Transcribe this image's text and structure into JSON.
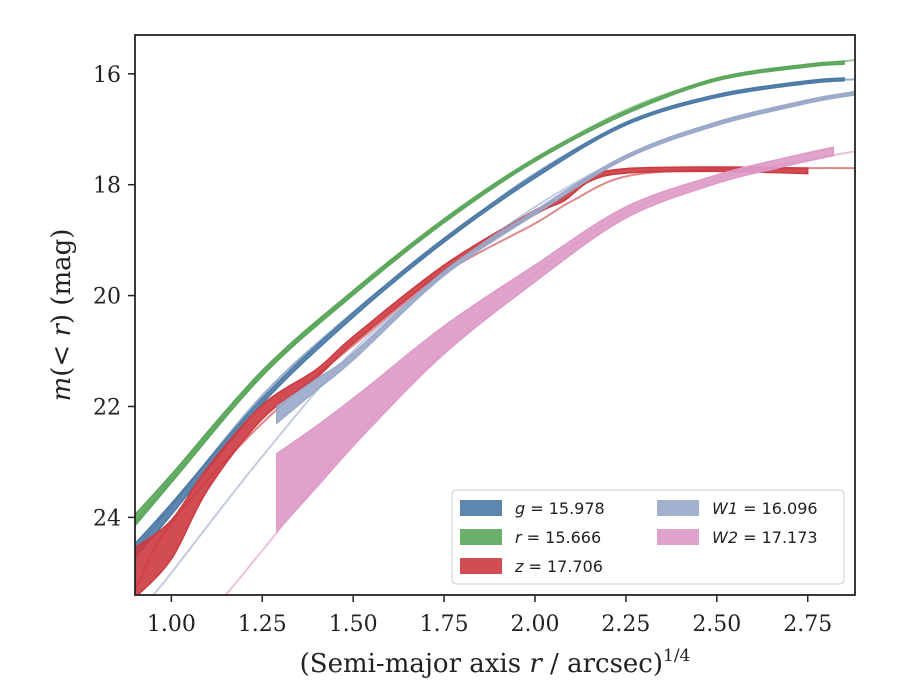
{
  "chart_data": {
    "type": "line",
    "title": "",
    "xlabel": "(Semi-major axis r / arcsec)^1/4",
    "xlabel_parts": {
      "prefix": "(Semi-major axis ",
      "var": "r",
      "suffix": " / arcsec)",
      "exponent": "1/4"
    },
    "ylabel": "m(< r) (mag)",
    "ylabel_parts": {
      "m": "m",
      "open": "(",
      "lt": "< ",
      "r": "r",
      "close": ")",
      "unit": " (mag)"
    },
    "xlim": [
      0.9,
      2.88
    ],
    "ylim": [
      25.4,
      15.3
    ],
    "y_inverted": true,
    "grid": false,
    "legend_position": "lower-right",
    "x_ticks": [
      1.0,
      1.25,
      1.5,
      1.75,
      2.0,
      2.25,
      2.5,
      2.75
    ],
    "x_tick_labels": [
      "1.00",
      "1.25",
      "1.50",
      "1.75",
      "2.00",
      "2.25",
      "2.50",
      "2.75"
    ],
    "y_ticks": [
      16,
      18,
      20,
      22,
      24
    ],
    "y_tick_labels": [
      "16",
      "18",
      "20",
      "22",
      "24"
    ],
    "series": [
      {
        "name": "g = 15.978",
        "band": "g",
        "value": "15.978",
        "color": "#4c7aa6",
        "model_x": [
          0.9,
          1.0,
          1.25,
          1.5,
          1.75,
          2.0,
          2.25,
          2.5,
          2.75,
          2.88
        ],
        "model_y": [
          24.6,
          23.8,
          21.8,
          20.3,
          19.0,
          17.8,
          16.9,
          16.4,
          16.15,
          16.1
        ],
        "data_x": [
          0.9,
          1.0,
          1.25,
          1.5,
          1.75,
          2.0,
          2.25,
          2.5,
          2.75,
          2.85
        ],
        "data_y": [
          24.6,
          23.85,
          21.9,
          20.35,
          19.0,
          17.85,
          16.9,
          16.4,
          16.15,
          16.1
        ],
        "data_width": [
          0.25,
          0.2,
          0.1,
          0.08,
          0.07,
          0.06,
          0.05,
          0.05,
          0.05,
          0.05
        ]
      },
      {
        "name": "r = 15.666",
        "band": "r",
        "value": "15.666",
        "color": "#5aa65a",
        "model_x": [
          0.9,
          1.0,
          1.25,
          1.5,
          1.75,
          2.0,
          2.25,
          2.5,
          2.75,
          2.88
        ],
        "model_y": [
          24.1,
          23.3,
          21.4,
          19.95,
          18.65,
          17.55,
          16.65,
          16.1,
          15.85,
          15.75
        ],
        "data_x": [
          0.9,
          1.0,
          1.25,
          1.5,
          1.75,
          2.0,
          2.25,
          2.5,
          2.75,
          2.85
        ],
        "data_y": [
          24.05,
          23.3,
          21.4,
          19.95,
          18.65,
          17.55,
          16.7,
          16.1,
          15.85,
          15.8
        ],
        "data_width": [
          0.2,
          0.15,
          0.1,
          0.08,
          0.07,
          0.06,
          0.05,
          0.05,
          0.05,
          0.05
        ]
      },
      {
        "name": "z = 17.706",
        "band": "z",
        "value": "17.706",
        "color": "#cc3a40",
        "model_x": [
          0.9,
          1.0,
          1.25,
          1.5,
          1.75,
          2.0,
          2.1,
          2.25,
          2.5,
          2.75,
          2.88
        ],
        "model_y": [
          25.3,
          24.1,
          22.3,
          20.9,
          19.6,
          18.7,
          18.3,
          17.85,
          17.72,
          17.7,
          17.7
        ],
        "data_x": [
          0.9,
          1.0,
          1.1,
          1.25,
          1.4,
          1.5,
          1.75,
          2.0,
          2.08,
          2.15,
          2.25,
          2.5,
          2.75
        ],
        "data_y": [
          25.0,
          24.4,
          23.3,
          22.1,
          21.4,
          20.8,
          19.5,
          18.5,
          18.25,
          17.9,
          17.75,
          17.72,
          17.75
        ],
        "data_width": [
          0.9,
          0.7,
          0.4,
          0.25,
          0.15,
          0.12,
          0.1,
          0.08,
          0.08,
          0.08,
          0.08,
          0.08,
          0.1
        ]
      },
      {
        "name": "W1 = 16.096",
        "band": "W1",
        "value": "16.096",
        "color": "#9aa8c9",
        "model_x": [
          0.95,
          1.0,
          1.25,
          1.5,
          1.75,
          2.0,
          2.25,
          2.5,
          2.75,
          2.88
        ],
        "model_y": [
          25.4,
          25.0,
          22.9,
          21.0,
          19.6,
          18.4,
          17.5,
          16.9,
          16.5,
          16.35
        ],
        "data_x": [
          1.29,
          1.4,
          1.5,
          1.75,
          2.0,
          2.25,
          2.5,
          2.75,
          2.88
        ],
        "data_y": [
          22.15,
          21.6,
          21.1,
          19.6,
          18.5,
          17.5,
          16.9,
          16.5,
          16.35
        ],
        "data_width": [
          0.3,
          0.2,
          0.12,
          0.08,
          0.07,
          0.06,
          0.06,
          0.06,
          0.06
        ]
      },
      {
        "name": "W2 = 17.173",
        "band": "W2",
        "value": "17.173",
        "color": "#dd9ac6",
        "model_x": [
          1.15,
          1.25,
          1.5,
          1.75,
          2.0,
          2.25,
          2.5,
          2.75,
          2.88
        ],
        "model_y": [
          25.4,
          24.6,
          22.6,
          21.0,
          19.6,
          18.5,
          17.9,
          17.55,
          17.4
        ],
        "data_x": [
          1.29,
          1.4,
          1.53,
          1.75,
          2.0,
          2.25,
          2.5,
          2.65,
          2.75,
          2.82
        ],
        "data_y": [
          23.55,
          22.9,
          22.1,
          20.8,
          19.6,
          18.5,
          17.9,
          17.65,
          17.5,
          17.4
        ],
        "data_width": [
          1.4,
          1.1,
          0.8,
          0.5,
          0.3,
          0.2,
          0.15,
          0.15,
          0.15,
          0.15
        ]
      }
    ]
  }
}
